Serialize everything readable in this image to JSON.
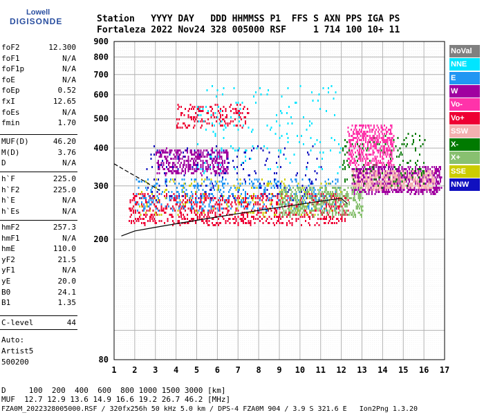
{
  "logo": {
    "line1": "Lowell",
    "line2": "DIGISONDE"
  },
  "header": {
    "row1": "Station   YYYY DAY   DDD HHMMSS P1  FFS S AXN PPS IGA PS",
    "row2": "Fortaleza 2022 Nov24 328 005000 RSF     1 714 100 10+ 11"
  },
  "params_group1": [
    {
      "name": "foF2",
      "value": "12.300"
    },
    {
      "name": "foF1",
      "value": "N/A"
    },
    {
      "name": "foF1p",
      "value": "N/A"
    },
    {
      "name": "foE",
      "value": "N/A"
    },
    {
      "name": "foEp",
      "value": "0.52"
    },
    {
      "name": "fxI",
      "value": "12.65"
    },
    {
      "name": "foEs",
      "value": "N/A"
    },
    {
      "name": "fmin",
      "value": "1.70"
    }
  ],
  "params_group2": [
    {
      "name": "MUF(D)",
      "value": "46.20"
    },
    {
      "name": "M(D)",
      "value": "3.76"
    },
    {
      "name": "D",
      "value": "N/A"
    }
  ],
  "params_group3": [
    {
      "name": "h`F",
      "value": "225.0"
    },
    {
      "name": "h`F2",
      "value": "225.0"
    },
    {
      "name": "h`E",
      "value": "N/A"
    },
    {
      "name": "h`Es",
      "value": "N/A"
    }
  ],
  "params_group4": [
    {
      "name": "hmF2",
      "value": "257.3"
    },
    {
      "name": "hmF1",
      "value": "N/A"
    },
    {
      "name": "hmE",
      "value": "110.0"
    },
    {
      "name": "yF2",
      "value": "21.5"
    },
    {
      "name": "yF1",
      "value": "N/A"
    },
    {
      "name": "yE",
      "value": "20.0"
    },
    {
      "name": "B0",
      "value": "24.1"
    },
    {
      "name": "B1",
      "value": "1.35"
    }
  ],
  "params_group5": [
    {
      "name": "C-level",
      "value": "44"
    }
  ],
  "auto": {
    "line1": "Auto:",
    "line2": "Artist5",
    "line3": "500200"
  },
  "footer": {
    "d_row": "D     100  200  400  600  800 1000 1500 3000 [km]",
    "muf_row": "MUF  12.7 12.9 13.6 14.9 16.6 19.2 26.7 46.2 [MHz]",
    "info": "FZA0M_2022328005000.RSF / 320fx256h 50 kHz 5.0 km / DPS-4 FZA0M 904 / 3.9 S 321.6 E   Ion2Png 1.3.20"
  },
  "legend": [
    {
      "label": "NoVal",
      "color": "#808080",
      "text": "#ffffff"
    },
    {
      "label": "NNE",
      "color": "#00e5ff",
      "text": "#ffffff"
    },
    {
      "label": "E",
      "color": "#2196f3",
      "text": "#ffffff"
    },
    {
      "label": "W",
      "color": "#a000a0",
      "text": "#ffffff"
    },
    {
      "label": "Vo-",
      "color": "#ff33aa",
      "text": "#ffffff"
    },
    {
      "label": "Vo+",
      "color": "#ee0033",
      "text": "#ffffff"
    },
    {
      "label": "SSW",
      "color": "#f4b0b0",
      "text": "#ffffff"
    },
    {
      "label": "X-",
      "color": "#007a00",
      "text": "#ffffff"
    },
    {
      "label": "X+",
      "color": "#88c070",
      "text": "#ffffff"
    },
    {
      "label": "SSE",
      "color": "#cccc00",
      "text": "#ffffff"
    },
    {
      "label": "NNW",
      "color": "#1010c0",
      "text": "#ffffff"
    }
  ],
  "chart_data": {
    "type": "scatter",
    "title": "",
    "xlabel": "",
    "ylabel": "",
    "xlim": [
      1,
      17
    ],
    "ylim": [
      80,
      900
    ],
    "yscale": "log",
    "x_ticks": [
      1,
      2,
      3,
      4,
      5,
      6,
      7,
      8,
      9,
      10,
      11,
      12,
      13,
      14,
      15,
      16,
      17
    ],
    "y_ticks": [
      80,
      200,
      300,
      400,
      500,
      600,
      700,
      800,
      900
    ],
    "grid": true,
    "legend_position": "right",
    "traces": [
      {
        "name": "O-trace profile",
        "color": "#000000",
        "style": "solid",
        "x": [
          1.35,
          2.0,
          3.0,
          4.0,
          5.0,
          6.0,
          7.0,
          8.0,
          9.0,
          10.0,
          11.0,
          12.0,
          12.3
        ],
        "y": [
          205,
          213,
          219,
          225,
          231,
          237,
          243,
          249,
          255,
          261,
          267,
          273,
          262
        ]
      },
      {
        "name": "X-trace",
        "color": "#000000",
        "style": "dashed",
        "x": [
          1.0,
          1.8,
          2.5,
          3.2
        ],
        "y": [
          355,
          330,
          310,
          290
        ]
      }
    ],
    "clusters": [
      {
        "color": "#ee0033",
        "x": [
          1.7,
          12.3
        ],
        "y": [
          225,
          285
        ],
        "density": "high"
      },
      {
        "color": "#2196f3",
        "x": [
          2.0,
          12.0
        ],
        "y": [
          250,
          320
        ],
        "density": "medium"
      },
      {
        "color": "#a000a0",
        "x": [
          3.0,
          6.5
        ],
        "y": [
          330,
          400
        ],
        "density": "medium"
      },
      {
        "color": "#a000a0",
        "x": [
          12.5,
          16.8
        ],
        "y": [
          285,
          350
        ],
        "density": "high"
      },
      {
        "color": "#f4b0b0",
        "x": [
          12.5,
          16.5
        ],
        "y": [
          295,
          340
        ],
        "density": "medium"
      },
      {
        "color": "#1010c0",
        "x": [
          2.5,
          11.0
        ],
        "y": [
          270,
          410
        ],
        "density": "low"
      },
      {
        "color": "#ee0033",
        "x": [
          4.0,
          7.5
        ],
        "y": [
          470,
          560
        ],
        "density": "low"
      },
      {
        "color": "#00e5ff",
        "x": [
          5.0,
          12.0
        ],
        "y": [
          330,
          650
        ],
        "density": "low"
      },
      {
        "color": "#cccc00",
        "x": [
          2.0,
          12.0
        ],
        "y": [
          240,
          320
        ],
        "density": "low"
      },
      {
        "color": "#88c070",
        "x": [
          9.0,
          13.0
        ],
        "y": [
          240,
          300
        ],
        "density": "medium"
      },
      {
        "color": "#007a00",
        "x": [
          12.0,
          16.0
        ],
        "y": [
          300,
          450
        ],
        "density": "low"
      },
      {
        "color": "#ff33aa",
        "x": [
          12.3,
          14.5
        ],
        "y": [
          350,
          480
        ],
        "density": "medium"
      }
    ]
  }
}
